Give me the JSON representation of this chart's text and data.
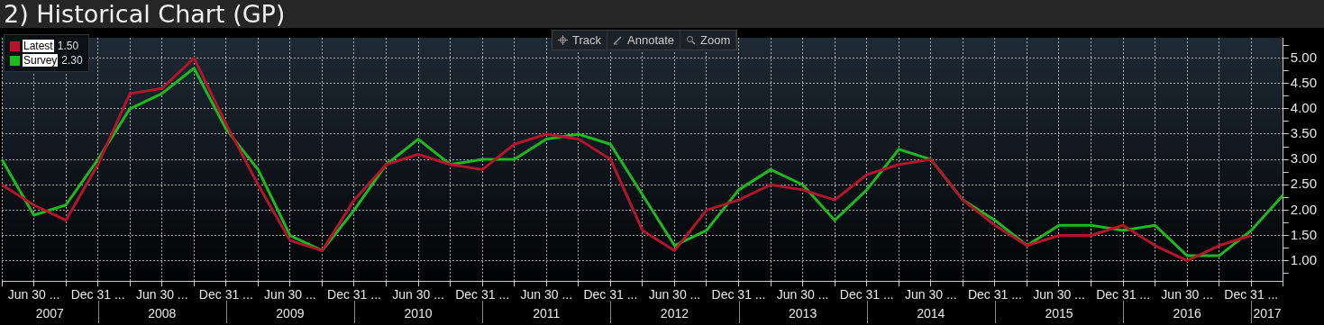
{
  "chart_data": {
    "type": "line",
    "title": "2) Historical Chart (GP)",
    "categories": [
      null,
      "Jun 30 ...",
      null,
      "Dec 31 ...",
      null,
      "Jun 30 ...",
      null,
      "Dec 31 ...",
      null,
      "Jun 30 ...",
      null,
      "Dec 31 ...",
      null,
      "Jun 30 ...",
      null,
      "Dec 31 ...",
      null,
      "Jun 30 ...",
      null,
      "Dec 31 ...",
      null,
      "Jun 30 ...",
      null,
      "Dec 31 ...",
      null,
      "Jun 30 ...",
      null,
      "Dec 31 ...",
      null,
      "Jun 30 ...",
      null,
      "Dec 31 ...",
      null,
      "Jun 30 ...",
      null,
      "Dec 31 ...",
      null,
      "Jun 30 ...",
      null,
      "Dec 31 ...",
      null
    ],
    "series": [
      {
        "name": "Latest",
        "color": "#b3162c",
        "values": [
          2.5,
          2.1,
          1.8,
          2.9,
          4.3,
          4.4,
          5.0,
          3.7,
          2.5,
          1.4,
          1.2,
          2.2,
          2.9,
          3.1,
          2.9,
          2.8,
          3.3,
          3.5,
          3.4,
          3.0,
          1.6,
          1.2,
          2.0,
          2.2,
          2.5,
          2.4,
          2.2,
          2.7,
          2.9,
          3.0,
          2.2,
          1.7,
          1.3,
          1.5,
          1.5,
          1.7,
          1.3,
          1.0,
          1.3,
          1.5,
          null
        ]
      },
      {
        "name": "Survey",
        "color": "#1fb81f",
        "values": [
          3.0,
          1.9,
          2.1,
          3.0,
          4.0,
          4.3,
          4.8,
          3.6,
          2.8,
          1.5,
          1.2,
          2.0,
          2.9,
          3.4,
          2.9,
          3.0,
          3.0,
          3.4,
          3.5,
          3.3,
          2.3,
          1.3,
          1.6,
          2.4,
          2.8,
          2.5,
          1.8,
          2.4,
          3.2,
          3.0,
          2.2,
          1.8,
          1.3,
          1.7,
          1.7,
          1.6,
          1.7,
          1.1,
          1.1,
          1.6,
          2.3
        ]
      }
    ],
    "ylim": [
      0.6,
      5.4
    ],
    "yticks": [
      {
        "value": 0.75,
        "label": null
      },
      {
        "value": 1,
        "label": "1.00"
      },
      {
        "value": 1.25,
        "label": null
      },
      {
        "value": 1.5,
        "label": "1.50"
      },
      {
        "value": 1.75,
        "label": null
      },
      {
        "value": 2,
        "label": "2.00"
      },
      {
        "value": 2.25,
        "label": null
      },
      {
        "value": 2.5,
        "label": "2.50"
      },
      {
        "value": 2.75,
        "label": null
      },
      {
        "value": 3,
        "label": "3.00"
      },
      {
        "value": 3.25,
        "label": null
      },
      {
        "value": 3.5,
        "label": "3.50"
      },
      {
        "value": 3.75,
        "label": null
      },
      {
        "value": 4,
        "label": "4.00"
      },
      {
        "value": 4.25,
        "label": null
      },
      {
        "value": 4.5,
        "label": "4.50"
      },
      {
        "value": 4.75,
        "label": null
      },
      {
        "value": 5,
        "label": "5.00"
      },
      {
        "value": 5.25,
        "label": null
      }
    ],
    "grid": true,
    "legend": "top left",
    "annotations": [
      "1.50",
      "2.30",
      "2007",
      "2008",
      "2009",
      "2010",
      "2011",
      "2012",
      "2013",
      "2014",
      "2015",
      "2016",
      "2017",
      "Track",
      "Annotate",
      "Zoom"
    ]
  }
}
